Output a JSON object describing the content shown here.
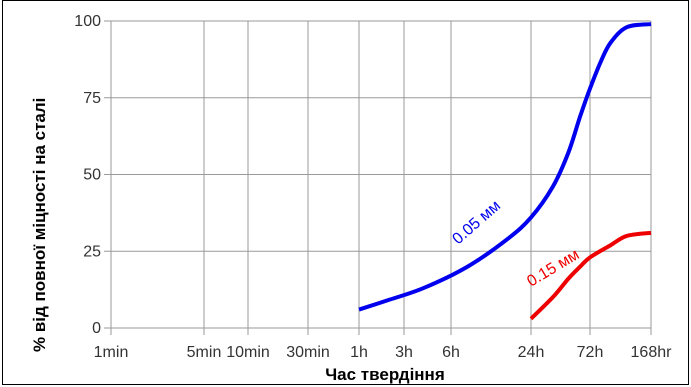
{
  "chart_data": {
    "type": "line",
    "xlabel": "Час твердіння",
    "ylabel": "% від повної міцності на сталі",
    "x_scale": "log",
    "xlim": [
      "1min",
      "168hr"
    ],
    "ylim": [
      0,
      100
    ],
    "grid": true,
    "x_ticks": [
      {
        "label": "1min",
        "minutes": 1
      },
      {
        "label": "5min",
        "minutes": 5
      },
      {
        "label": "10min",
        "minutes": 10
      },
      {
        "label": "30min",
        "minutes": 30
      },
      {
        "label": "1h",
        "minutes": 60
      },
      {
        "label": "3h",
        "minutes": 180
      },
      {
        "label": "6h",
        "minutes": 360
      },
      {
        "label": "24h",
        "minutes": 1440
      },
      {
        "label": "72h",
        "minutes": 4320
      },
      {
        "label": "168hr",
        "minutes": 10080
      }
    ],
    "y_ticks": [
      "0",
      "25",
      "50",
      "75",
      "100"
    ],
    "y_tick_values": [
      0,
      25,
      50,
      75,
      100
    ],
    "series": [
      {
        "name": "0.05 мм",
        "color": "#0000ee",
        "points": [
          {
            "minutes": 60,
            "y": 6
          },
          {
            "minutes": 120,
            "y": 9
          },
          {
            "minutes": 240,
            "y": 13
          },
          {
            "minutes": 480,
            "y": 20
          },
          {
            "minutes": 960,
            "y": 29
          },
          {
            "minutes": 1440,
            "y": 36
          },
          {
            "minutes": 2160,
            "y": 46
          },
          {
            "minutes": 2880,
            "y": 57
          },
          {
            "minutes": 3600,
            "y": 69
          },
          {
            "minutes": 4320,
            "y": 78
          },
          {
            "minutes": 5040,
            "y": 87
          },
          {
            "minutes": 5760,
            "y": 93
          },
          {
            "minutes": 7200,
            "y": 98
          },
          {
            "minutes": 10080,
            "y": 99
          }
        ]
      },
      {
        "name": "0.15 мм",
        "color": "#ee0000",
        "points": [
          {
            "minutes": 1440,
            "y": 3
          },
          {
            "minutes": 2160,
            "y": 10
          },
          {
            "minutes": 2880,
            "y": 16
          },
          {
            "minutes": 3600,
            "y": 20
          },
          {
            "minutes": 4320,
            "y": 23
          },
          {
            "minutes": 5760,
            "y": 27
          },
          {
            "minutes": 7200,
            "y": 30
          },
          {
            "minutes": 10080,
            "y": 31
          }
        ]
      }
    ]
  }
}
